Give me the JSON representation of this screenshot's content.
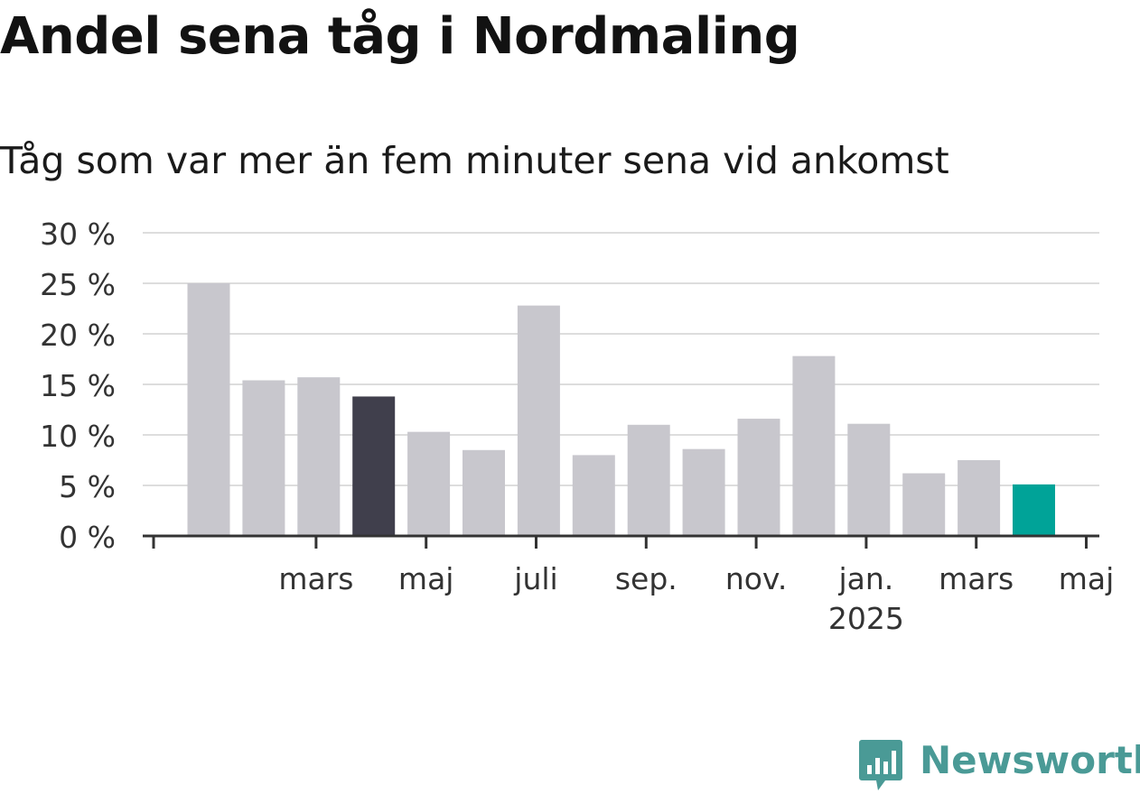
{
  "header": {
    "title": "Andel sena tåg i Nordmaling",
    "subtitle": "Tåg som var mer än fem minuter sena vid ankomst"
  },
  "brand": {
    "name": "Newsworthy",
    "icon": "newsworthy-logo-icon",
    "color": "#4a9a96"
  },
  "chart_data": {
    "type": "bar",
    "months": [
      "2024-02",
      "2024-03",
      "2024-04",
      "2024-05",
      "2024-06",
      "2024-07",
      "2024-08",
      "2024-09",
      "2024-10",
      "2024-11",
      "2024-12",
      "2025-01",
      "2025-02",
      "2025-03",
      "2025-04",
      "2025-05"
    ],
    "values": [
      25,
      15.4,
      15.7,
      13.8,
      10.3,
      8.5,
      22.8,
      8.0,
      11.0,
      8.6,
      11.6,
      17.8,
      11.1,
      6.2,
      7.5,
      5.1
    ],
    "ylim": [
      0,
      30
    ],
    "y_ticks": [
      0,
      5,
      10,
      15,
      20,
      25,
      30
    ],
    "y_tick_labels": [
      "0 %",
      "5 %",
      "10 %",
      "15 %",
      "20 %",
      "25 %",
      "30 %"
    ],
    "x_ticks": [
      {
        "month": "2024-03",
        "label": "mars",
        "sublabel": ""
      },
      {
        "month": "2024-05",
        "label": "maj",
        "sublabel": ""
      },
      {
        "month": "2024-07",
        "label": "juli",
        "sublabel": ""
      },
      {
        "month": "2024-09",
        "label": "sep.",
        "sublabel": ""
      },
      {
        "month": "2024-11",
        "label": "nov.",
        "sublabel": ""
      },
      {
        "month": "2025-01",
        "label": "jan.",
        "sublabel": "2025"
      },
      {
        "month": "2025-03",
        "label": "mars",
        "sublabel": ""
      },
      {
        "month": "2025-05",
        "label": "maj",
        "sublabel": ""
      }
    ],
    "grid": true,
    "highlight": [
      {
        "month": "2024-05",
        "color": "#403f4c"
      },
      {
        "month": "2025-05",
        "color": "#00a398"
      }
    ],
    "colors": {
      "bar": "#c8c7cd",
      "grid": "#dddddd",
      "axis": "#333333",
      "text": "#333333"
    }
  }
}
